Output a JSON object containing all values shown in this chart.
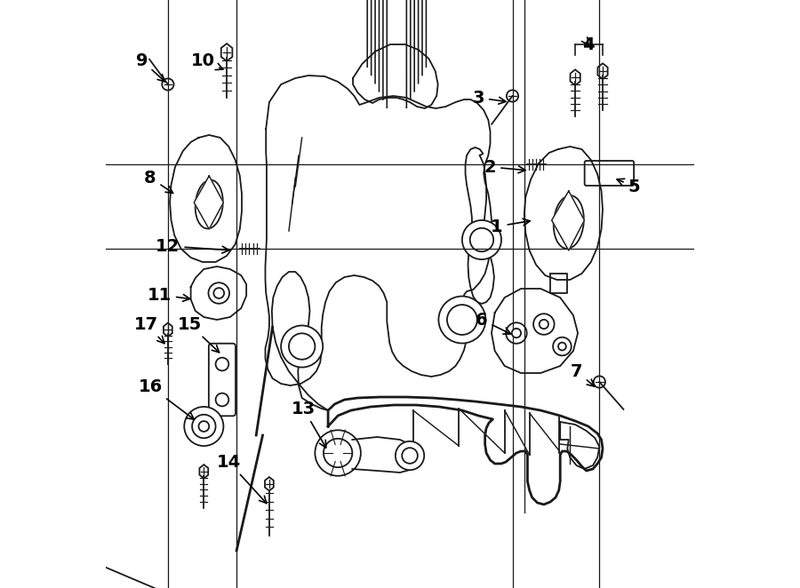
{
  "bg_color": "#ffffff",
  "line_color": "#1a1a1a",
  "lw": 1.3,
  "lw_thick": 2.0,
  "figsize": [
    9.0,
    6.62
  ],
  "dpi": 100
}
